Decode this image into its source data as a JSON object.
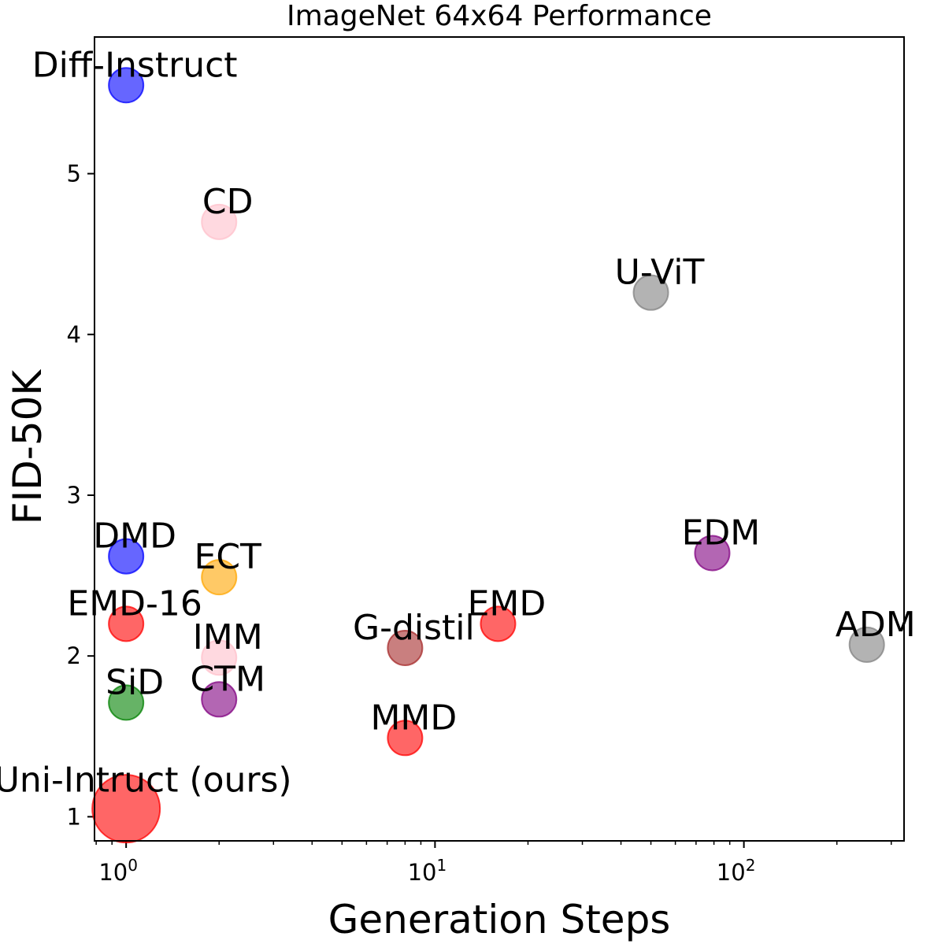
{
  "chart_data": {
    "type": "scatter",
    "title": "ImageNet 64x64 Performance",
    "xlabel": "Generation Steps",
    "ylabel": "FID-50K",
    "xscale": "log",
    "xlim": [
      0.79,
      330
    ],
    "ylim": [
      0.85,
      5.85
    ],
    "x_ticks": [
      {
        "value": 1,
        "base": "10",
        "exp": "0"
      },
      {
        "value": 10,
        "base": "10",
        "exp": "1"
      },
      {
        "value": 100,
        "base": "10",
        "exp": "2"
      }
    ],
    "y_ticks": [
      1,
      2,
      3,
      4,
      5
    ],
    "grid": false,
    "points": [
      {
        "label": "Diff-Instruct",
        "x": 1,
        "y": 5.55,
        "color": "#0000ff",
        "size": 22
      },
      {
        "label": "CD",
        "x": 2,
        "y": 4.7,
        "color": "#ffc0cb",
        "size": 22
      },
      {
        "label": "U-ViT",
        "x": 50,
        "y": 4.26,
        "color": "#808080",
        "size": 22
      },
      {
        "label": "DMD",
        "x": 1,
        "y": 2.62,
        "color": "#0000ff",
        "size": 22
      },
      {
        "label": "ECT",
        "x": 2,
        "y": 2.49,
        "color": "#ffa500",
        "size": 22
      },
      {
        "label": "EDM",
        "x": 79,
        "y": 2.64,
        "color": "#800080",
        "size": 22
      },
      {
        "label": "EMD-16",
        "x": 1,
        "y": 2.2,
        "color": "#ff0000",
        "size": 22
      },
      {
        "label": "EMD",
        "x": 16,
        "y": 2.2,
        "color": "#ff0000",
        "size": 22
      },
      {
        "label": "G-distil",
        "x": 8,
        "y": 2.05,
        "color": "#a52a2a",
        "size": 22
      },
      {
        "label": "ADM",
        "x": 250,
        "y": 2.07,
        "color": "#808080",
        "size": 22
      },
      {
        "label": "IMM",
        "x": 2,
        "y": 1.99,
        "color": "#ffc0cb",
        "size": 22
      },
      {
        "label": "SiD",
        "x": 1,
        "y": 1.71,
        "color": "#008000",
        "size": 22
      },
      {
        "label": "CTM",
        "x": 2,
        "y": 1.73,
        "color": "#800080",
        "size": 22
      },
      {
        "label": "MMD",
        "x": 8,
        "y": 1.49,
        "color": "#ff0000",
        "size": 22
      },
      {
        "label": "Uni-Intruct (ours)",
        "x": 1,
        "y": 1.05,
        "color": "#ff0000",
        "size": 43
      }
    ]
  }
}
